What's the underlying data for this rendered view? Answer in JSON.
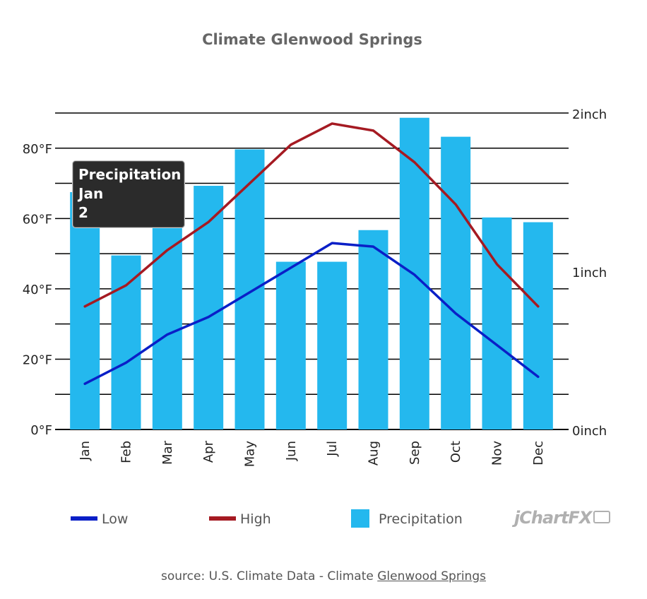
{
  "chart_data": {
    "type": "bar",
    "title": "Climate Glenwood Springs",
    "categories": [
      "Jan",
      "Feb",
      "Mar",
      "Apr",
      "May",
      "Jun",
      "Jul",
      "Aug",
      "Sep",
      "Oct",
      "Nov",
      "Dec"
    ],
    "series": [
      {
        "name": "Precipitation",
        "type": "bar",
        "axis": "right",
        "color": "#24b8ee",
        "values": [
          1.5,
          1.1,
          1.29,
          1.54,
          1.77,
          1.06,
          1.06,
          1.26,
          1.97,
          1.85,
          1.34,
          1.31
        ]
      },
      {
        "name": "Low",
        "type": "line",
        "axis": "left",
        "color": "#0a1fc7",
        "values": [
          13,
          19,
          27,
          32,
          39,
          46,
          53,
          52,
          44,
          33,
          24,
          15
        ]
      },
      {
        "name": "High",
        "type": "line",
        "axis": "left",
        "color": "#a51a22",
        "values": [
          35,
          41,
          51,
          59,
          70,
          81,
          87,
          85,
          76,
          64,
          47,
          35
        ]
      }
    ],
    "y_left": {
      "min": 0,
      "max": 90,
      "ticks": [
        0,
        20,
        40,
        60,
        80
      ],
      "tick_labels": [
        "0°F",
        "20°F",
        "40°F",
        "60°F",
        "80°F"
      ]
    },
    "y_right": {
      "min": 0,
      "max": 2,
      "ticks": [
        0,
        1,
        2
      ],
      "tick_labels": [
        "0inch",
        "1inch",
        "2inch"
      ]
    },
    "grid": true,
    "legend": {
      "placement": "bottom",
      "items": [
        {
          "label": "Low",
          "color": "#0a1fc7",
          "kind": "line"
        },
        {
          "label": "High",
          "color": "#a51a22",
          "kind": "line"
        },
        {
          "label": "Precipitation",
          "color": "#24b8ee",
          "kind": "box"
        }
      ]
    }
  },
  "tooltip": {
    "series": "Precipitation",
    "category": "Jan",
    "value": "2"
  },
  "source": {
    "prefix": "source: U.S. Climate Data - Climate ",
    "link_text": "Glenwood Springs"
  },
  "brand": {
    "text": "jChartFX"
  }
}
